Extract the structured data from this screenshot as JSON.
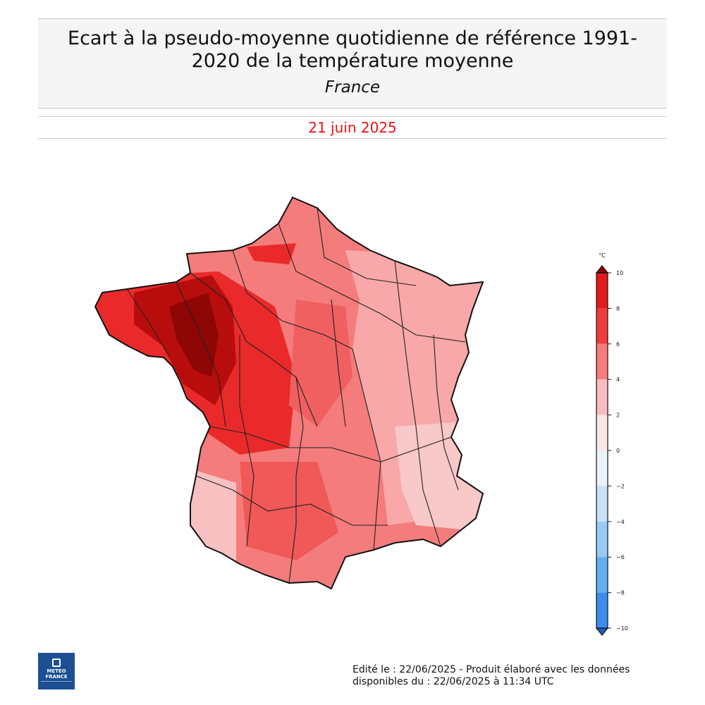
{
  "header": {
    "title_line1": "Ecart à la pseudo-moyenne quotidienne de référence 1991-",
    "title_line2": "2020 de la température moyenne",
    "subtitle": "France"
  },
  "date": {
    "label": "21 juin 2025",
    "color": "#ee1111"
  },
  "legend": {
    "unit": "°C",
    "ticks": [
      "10",
      "8",
      "6",
      "4",
      "2",
      "0",
      "−2",
      "−4",
      "−6",
      "−8",
      "−10"
    ],
    "bins": [
      {
        "min": 8,
        "max": 10,
        "color": "#e31a1c"
      },
      {
        "min": 6,
        "max": 8,
        "color": "#f03b3b"
      },
      {
        "min": 4,
        "max": 6,
        "color": "#f47c7c"
      },
      {
        "min": 2,
        "max": 4,
        "color": "#f8bcbc"
      },
      {
        "min": 0,
        "max": 2,
        "color": "#fbe6e6"
      },
      {
        "min": -2,
        "max": 0,
        "color": "#eaf2fb"
      },
      {
        "min": -4,
        "max": -2,
        "color": "#c6e2f8"
      },
      {
        "min": -6,
        "max": -4,
        "color": "#96ccf3"
      },
      {
        "min": -8,
        "max": -6,
        "color": "#62aef0"
      },
      {
        "min": -10,
        "max": -8,
        "color": "#3b8ded"
      }
    ],
    "over_color": "#8b0000",
    "under_color": "#1f5fc4"
  },
  "logo": {
    "line1": "METEO",
    "line2": "FRANCE"
  },
  "footer": {
    "line1": "Edité le : 22/06/2025 - Produit élaboré avec les données",
    "line2": "disponibles du : 22/06/2025 à 11:34 UTC"
  }
}
